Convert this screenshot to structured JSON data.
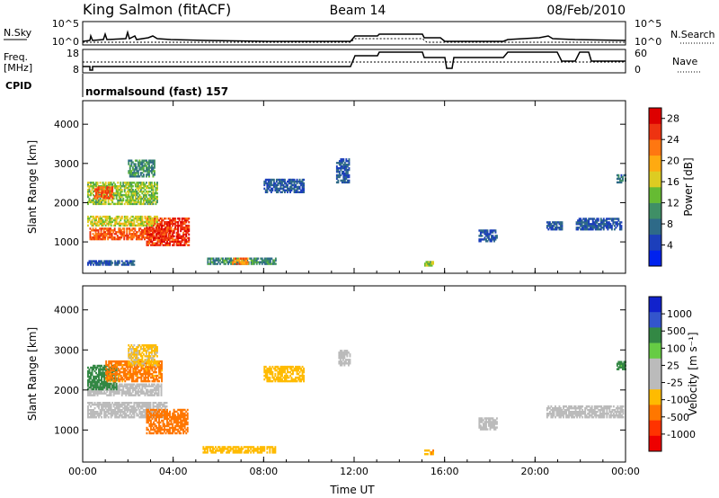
{
  "header": {
    "station": "King Salmon (fitACF)",
    "beam": "Beam 14",
    "date": "08/Feb/2010"
  },
  "top_panels": {
    "nsky_label": "N.Sky",
    "nsearch_label": "N.Search",
    "nsky_ticks": [
      "10^5",
      "10^0"
    ],
    "nsearch_ticks": [
      "10^5",
      "10^0"
    ],
    "freq_label": "Freq.",
    "freq_unit": "[MHz]",
    "freq_ticks": [
      "18",
      "8"
    ],
    "nave_label": "Nave",
    "nave_ticks": [
      "60",
      "0"
    ],
    "cpid_label": "CPID",
    "cpid_text": "normalsound (fast) 157"
  },
  "colors": {
    "power_scale": [
      "#0022ee",
      "#1c3fbb",
      "#2e6a88",
      "#3f8f66",
      "#66bb33",
      "#ddcc22",
      "#ffaa11",
      "#ff7711",
      "#ee3311",
      "#dd0000"
    ],
    "velocity_scale": [
      "#1122cc",
      "#3355cc",
      "#338844",
      "#66cc44",
      "#bbbbbb",
      "#bbbbbb",
      "#ffbb00",
      "#ff7700",
      "#ff3300",
      "#ee0000"
    ]
  },
  "chart_data": [
    {
      "type": "heatmap",
      "panel": "power",
      "ylabel": "Slant Range [km]",
      "ylim": [
        200,
        4600
      ],
      "yticks": [
        "1000",
        "2000",
        "3000",
        "4000"
      ],
      "xlim_hours": [
        0,
        24
      ],
      "xticks": [
        "00:00",
        "04:00",
        "08:00",
        "12:00",
        "16:00",
        "20:00",
        "00:00"
      ],
      "colorbar_label": "Power [dB]",
      "colorbar_ticks": [
        "4",
        "8",
        "12",
        "16",
        "20",
        "24",
        "28"
      ],
      "colorbar_range": [
        0,
        30
      ],
      "echo_regions": [
        {
          "t": [
            0.3,
            3.9
          ],
          "r": [
            1050,
            1350
          ],
          "value": 24
        },
        {
          "t": [
            2.8,
            4.7
          ],
          "r": [
            900,
            1600
          ],
          "value": 26
        },
        {
          "t": [
            0.2,
            3.3
          ],
          "r": [
            1400,
            1650
          ],
          "value": 16
        },
        {
          "t": [
            0.2,
            3.3
          ],
          "r": [
            1950,
            2500
          ],
          "value": 14
        },
        {
          "t": [
            0.5,
            1.3
          ],
          "r": [
            2100,
            2400
          ],
          "value": 24
        },
        {
          "t": [
            2.0,
            3.2
          ],
          "r": [
            2650,
            3100
          ],
          "value": 10
        },
        {
          "t": [
            0.2,
            2.3
          ],
          "r": [
            400,
            520
          ],
          "value": 6
        },
        {
          "t": [
            5.5,
            8.5
          ],
          "r": [
            420,
            560
          ],
          "value": 10
        },
        {
          "t": [
            6.6,
            7.3
          ],
          "r": [
            420,
            560
          ],
          "value": 22
        },
        {
          "t": [
            8.0,
            9.8
          ],
          "r": [
            2250,
            2600
          ],
          "value": 6
        },
        {
          "t": [
            11.2,
            11.8
          ],
          "r": [
            2500,
            3100
          ],
          "value": 6
        },
        {
          "t": [
            15.1,
            15.5
          ],
          "r": [
            380,
            480
          ],
          "value": 14
        },
        {
          "t": [
            17.5,
            18.3
          ],
          "r": [
            1000,
            1300
          ],
          "value": 6
        },
        {
          "t": [
            20.5,
            21.2
          ],
          "r": [
            1300,
            1500
          ],
          "value": 6
        },
        {
          "t": [
            21.8,
            23.8
          ],
          "r": [
            1300,
            1600
          ],
          "value": 6
        },
        {
          "t": [
            23.6,
            24.0
          ],
          "r": [
            2500,
            2700
          ],
          "value": 8
        }
      ]
    },
    {
      "type": "heatmap",
      "panel": "velocity",
      "ylabel": "Slant Range [km]",
      "ylim": [
        200,
        4600
      ],
      "yticks": [
        "1000",
        "2000",
        "3000",
        "4000"
      ],
      "xlim_hours": [
        0,
        24
      ],
      "xticks": [
        "00:00",
        "04:00",
        "08:00",
        "12:00",
        "16:00",
        "20:00",
        "00:00"
      ],
      "xlabel": "Time UT",
      "colorbar_label": "Velocity [m s⁻¹]",
      "colorbar_ticks": [
        "1000",
        "500",
        "100",
        "25",
        "-25",
        "-100",
        "-500",
        "-1000"
      ],
      "echo_regions": [
        {
          "t": [
            0.2,
            3.7
          ],
          "r": [
            1300,
            1700
          ],
          "value": 0
        },
        {
          "t": [
            0.2,
            3.5
          ],
          "r": [
            1850,
            2150
          ],
          "value": 0
        },
        {
          "t": [
            2.8,
            4.6
          ],
          "r": [
            900,
            1500
          ],
          "value": -150
        },
        {
          "t": [
            0.2,
            1.5
          ],
          "r": [
            2000,
            2600
          ],
          "value": 300
        },
        {
          "t": [
            1.0,
            3.5
          ],
          "r": [
            2200,
            2700
          ],
          "value": -120
        },
        {
          "t": [
            2.0,
            3.3
          ],
          "r": [
            2600,
            3100
          ],
          "value": -30
        },
        {
          "t": [
            5.3,
            8.5
          ],
          "r": [
            420,
            560
          ],
          "value": -80
        },
        {
          "t": [
            8.0,
            9.8
          ],
          "r": [
            2200,
            2600
          ],
          "value": -40
        },
        {
          "t": [
            11.3,
            11.8
          ],
          "r": [
            2600,
            3000
          ],
          "value": 0
        },
        {
          "t": [
            15.1,
            15.5
          ],
          "r": [
            380,
            480
          ],
          "value": -90
        },
        {
          "t": [
            17.5,
            18.3
          ],
          "r": [
            1000,
            1300
          ],
          "value": 0
        },
        {
          "t": [
            20.5,
            23.9
          ],
          "r": [
            1300,
            1600
          ],
          "value": 0
        },
        {
          "t": [
            23.6,
            24.0
          ],
          "r": [
            2500,
            2700
          ],
          "value": 120
        }
      ]
    }
  ]
}
